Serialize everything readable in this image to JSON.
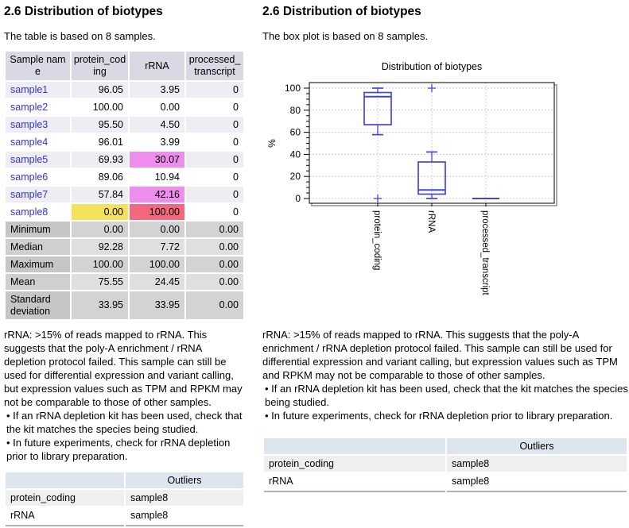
{
  "colors": {
    "link": "#3333cc",
    "highlight_violet": "#ee8dee",
    "highlight_red": "#f3677f",
    "highlight_yellow": "#f4e15e",
    "boxplot_line": "#4444dd",
    "table_header_bg": "#d9d9e6",
    "outlier_header_bg": "#dde5ef",
    "grid": "#cccccc"
  },
  "left": {
    "heading": "2.6 Distribution of biotypes",
    "intro": "The table is based on 8 samples.",
    "table": {
      "headers": [
        "Sample name",
        "protein_coding",
        "rRNA",
        "processed_transcript"
      ],
      "rows": [
        {
          "name": "sample1",
          "values": [
            "96.05",
            "3.95",
            "0"
          ],
          "hl": [
            "",
            "",
            ""
          ]
        },
        {
          "name": "sample2",
          "values": [
            "100.00",
            "0.00",
            "0"
          ],
          "hl": [
            "",
            "",
            ""
          ]
        },
        {
          "name": "sample3",
          "values": [
            "95.50",
            "4.50",
            "0"
          ],
          "hl": [
            "",
            "",
            ""
          ]
        },
        {
          "name": "sample4",
          "values": [
            "96.01",
            "3.99",
            "0"
          ],
          "hl": [
            "",
            "",
            ""
          ]
        },
        {
          "name": "sample5",
          "values": [
            "69.93",
            "30.07",
            "0"
          ],
          "hl": [
            "",
            "hl-violet",
            ""
          ]
        },
        {
          "name": "sample6",
          "values": [
            "89.06",
            "10.94",
            "0"
          ],
          "hl": [
            "",
            "",
            ""
          ]
        },
        {
          "name": "sample7",
          "values": [
            "57.84",
            "42.16",
            "0"
          ],
          "hl": [
            "",
            "hl-violet",
            ""
          ]
        },
        {
          "name": "sample8",
          "values": [
            "0.00",
            "100.00",
            "0"
          ],
          "hl": [
            "hl-yellow",
            "hl-red",
            ""
          ]
        }
      ],
      "summary": [
        {
          "label": "Minimum",
          "values": [
            "0.00",
            "0.00",
            "0.00"
          ]
        },
        {
          "label": "Median",
          "values": [
            "92.28",
            "7.72",
            "0.00"
          ]
        },
        {
          "label": "Maximum",
          "values": [
            "100.00",
            "100.00",
            "0.00"
          ]
        },
        {
          "label": "Mean",
          "values": [
            "75.55",
            "24.45",
            "0.00"
          ]
        },
        {
          "label": "Standard deviation",
          "values": [
            "33.95",
            "33.95",
            "0.00"
          ]
        }
      ]
    },
    "note": {
      "main": "rRNA: >15% of reads mapped to rRNA. This suggests that the poly-A enrichment / rRNA depletion protocol failed. This sample can still be used for differential expression and variant calling, but expression values such as TPM and RPKM may not be comparable to those of other samples.",
      "bullets": [
        "• If an rRNA depletion kit has been used, check that the kit matches the species being studied.",
        "• In future experiments, check for rRNA depletion prior to library preparation."
      ]
    },
    "outliers": {
      "header": "Outliers",
      "rows": [
        {
          "label": "protein_coding",
          "value": "sample8"
        },
        {
          "label": "rRNA",
          "value": "sample8"
        }
      ]
    }
  },
  "right": {
    "heading": "2.6 Distribution of biotypes",
    "intro": "The box plot is based on 8 samples.",
    "note": {
      "main": "rRNA: >15% of reads mapped to rRNA. This suggests that the poly-A enrichment / rRNA depletion protocol failed. This sample can still be used for differential expression and variant calling, but expression values such as TPM and RPKM may not be comparable to those of other samples.",
      "bullets": [
        "• If an rRNA depletion kit has been used, check that the kit matches the species being studied.",
        "• In future experiments, check for rRNA depletion prior to library preparation."
      ]
    },
    "outliers": {
      "header": "Outliers",
      "rows": [
        {
          "label": "protein_coding",
          "value": "sample8"
        },
        {
          "label": "rRNA",
          "value": "sample8"
        }
      ]
    }
  },
  "chart_data": {
    "type": "box",
    "title": "Distribution of biotypes",
    "ylabel": "%",
    "ylim": [
      0,
      100
    ],
    "y_major_ticks": [
      0,
      20,
      40,
      60,
      80,
      100
    ],
    "y_minor_step": 5,
    "grid": true,
    "legend": false,
    "categories": [
      "protein_coding",
      "rRNA",
      "processed_transcript"
    ],
    "series": [
      {
        "name": "protein_coding",
        "values": [
          96.05,
          100.0,
          95.5,
          96.01,
          69.93,
          89.06,
          57.84,
          0.0
        ],
        "box": {
          "whisker_low": 57.84,
          "q1": 66.91,
          "median": 92.28,
          "q3": 96.02,
          "whisker_high": 100.0,
          "outliers": [
            0.0
          ]
        }
      },
      {
        "name": "rRNA",
        "values": [
          3.95,
          0.0,
          4.5,
          3.99,
          30.07,
          10.94,
          42.16,
          100.0
        ],
        "box": {
          "whisker_low": 0.0,
          "q1": 3.98,
          "median": 7.72,
          "q3": 33.09,
          "whisker_high": 42.16,
          "outliers": [
            100.0
          ]
        }
      },
      {
        "name": "processed_transcript",
        "values": [
          0,
          0,
          0,
          0,
          0,
          0,
          0,
          0
        ],
        "box": {
          "whisker_low": 0,
          "q1": 0,
          "median": 0,
          "q3": 0,
          "whisker_high": 0,
          "outliers": []
        }
      }
    ]
  }
}
